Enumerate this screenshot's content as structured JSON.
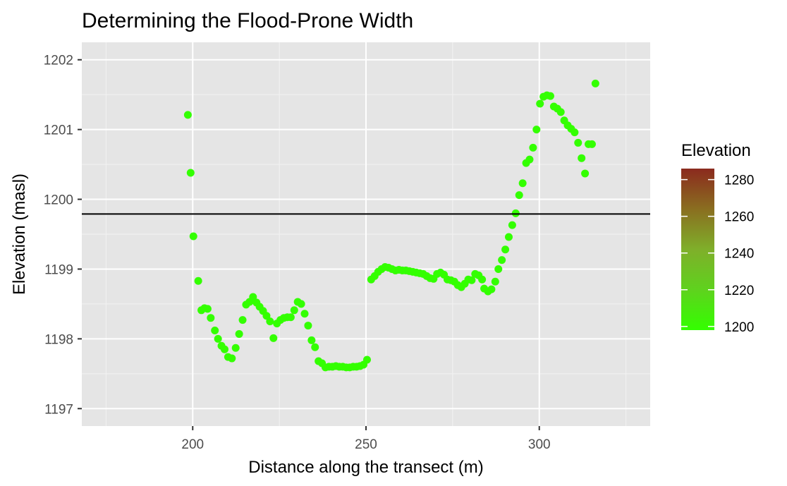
{
  "chart_data": {
    "type": "scatter",
    "title": "Determining the Flood-Prone Width",
    "xlabel": "Distance along the transect (m)",
    "ylabel": "Elevation (masl)",
    "xlim": [
      168,
      332
    ],
    "ylim": [
      1196.75,
      1202.25
    ],
    "x_ticks": [
      200,
      250,
      300
    ],
    "y_ticks": [
      1197,
      1198,
      1199,
      1200,
      1201,
      1202
    ],
    "grid": true,
    "panel_background": "#e5e5e5",
    "point_color": "#33ff00",
    "hline": {
      "y": 1199.79,
      "color": "#000000"
    },
    "legend": {
      "title": "Elevation",
      "position": "right",
      "ticks": [
        1200,
        1220,
        1240,
        1260,
        1280
      ],
      "range": [
        1198,
        1286
      ],
      "gradient": [
        "#33ff00",
        "#5fd21e",
        "#7faf2a",
        "#8a6e20",
        "#8b2a1e"
      ]
    },
    "points": [
      [
        198.6,
        1201.21
      ],
      [
        199.4,
        1200.38
      ],
      [
        200.2,
        1199.47
      ],
      [
        201.6,
        1198.83
      ],
      [
        202.5,
        1198.41
      ],
      [
        203.4,
        1198.44
      ],
      [
        204.3,
        1198.43
      ],
      [
        205.2,
        1198.3
      ],
      [
        206.4,
        1198.12
      ],
      [
        207.3,
        1198.0
      ],
      [
        208.3,
        1197.9
      ],
      [
        209.2,
        1197.85
      ],
      [
        210.2,
        1197.74
      ],
      [
        211.3,
        1197.72
      ],
      [
        212.4,
        1197.87
      ],
      [
        213.4,
        1198.07
      ],
      [
        214.4,
        1198.27
      ],
      [
        215.4,
        1198.49
      ],
      [
        216.4,
        1198.53
      ],
      [
        217.4,
        1198.6
      ],
      [
        218.4,
        1198.52
      ],
      [
        219.3,
        1198.46
      ],
      [
        220.3,
        1198.4
      ],
      [
        221.3,
        1198.33
      ],
      [
        222.3,
        1198.25
      ],
      [
        223.3,
        1198.01
      ],
      [
        224.3,
        1198.22
      ],
      [
        225.3,
        1198.27
      ],
      [
        226.3,
        1198.3
      ],
      [
        227.3,
        1198.31
      ],
      [
        228.3,
        1198.31
      ],
      [
        229.3,
        1198.41
      ],
      [
        230.3,
        1198.53
      ],
      [
        231.3,
        1198.5
      ],
      [
        232.3,
        1198.36
      ],
      [
        233.3,
        1198.19
      ],
      [
        234.3,
        1197.98
      ],
      [
        235.3,
        1197.88
      ],
      [
        236.3,
        1197.68
      ],
      [
        237.3,
        1197.65
      ],
      [
        238.3,
        1197.59
      ],
      [
        239.3,
        1197.6
      ],
      [
        240.3,
        1197.6
      ],
      [
        241.3,
        1197.61
      ],
      [
        242.3,
        1197.6
      ],
      [
        243.3,
        1197.6
      ],
      [
        244.3,
        1197.59
      ],
      [
        245.3,
        1197.59
      ],
      [
        246.3,
        1197.6
      ],
      [
        247.3,
        1197.6
      ],
      [
        248.3,
        1197.61
      ],
      [
        249.3,
        1197.63
      ],
      [
        250.3,
        1197.7
      ],
      [
        251.5,
        1198.85
      ],
      [
        252.5,
        1198.9
      ],
      [
        253.5,
        1198.96
      ],
      [
        254.5,
        1199.0
      ],
      [
        255.5,
        1199.03
      ],
      [
        256.5,
        1199.02
      ],
      [
        257.5,
        1199.0
      ],
      [
        258.5,
        1198.98
      ],
      [
        259.5,
        1198.99
      ],
      [
        260.5,
        1198.98
      ],
      [
        261.5,
        1198.98
      ],
      [
        262.5,
        1198.97
      ],
      [
        263.5,
        1198.96
      ],
      [
        264.5,
        1198.95
      ],
      [
        265.5,
        1198.94
      ],
      [
        266.5,
        1198.93
      ],
      [
        267.5,
        1198.9
      ],
      [
        268.5,
        1198.87
      ],
      [
        269.5,
        1198.86
      ],
      [
        270.5,
        1198.93
      ],
      [
        271.5,
        1198.95
      ],
      [
        272.5,
        1198.92
      ],
      [
        273.5,
        1198.85
      ],
      [
        274.5,
        1198.84
      ],
      [
        275.5,
        1198.82
      ],
      [
        276.5,
        1198.77
      ],
      [
        277.5,
        1198.74
      ],
      [
        278.5,
        1198.79
      ],
      [
        279.5,
        1198.85
      ],
      [
        280.5,
        1198.84
      ],
      [
        281.5,
        1198.93
      ],
      [
        282.5,
        1198.91
      ],
      [
        283.5,
        1198.85
      ],
      [
        284.1,
        1198.72
      ],
      [
        285.2,
        1198.68
      ],
      [
        286.2,
        1198.71
      ],
      [
        287.3,
        1198.82
      ],
      [
        288.2,
        1199.0
      ],
      [
        289.2,
        1199.13
      ],
      [
        290.2,
        1199.28
      ],
      [
        291.2,
        1199.46
      ],
      [
        292.2,
        1199.63
      ],
      [
        293.2,
        1199.8
      ],
      [
        294.2,
        1200.06
      ],
      [
        295.2,
        1200.23
      ],
      [
        296.2,
        1200.52
      ],
      [
        297.2,
        1200.57
      ],
      [
        298.2,
        1200.74
      ],
      [
        299.2,
        1201.0
      ],
      [
        300.2,
        1201.37
      ],
      [
        301.2,
        1201.47
      ],
      [
        302.2,
        1201.49
      ],
      [
        303.2,
        1201.48
      ],
      [
        304.2,
        1201.33
      ],
      [
        305.2,
        1201.3
      ],
      [
        306.2,
        1201.25
      ],
      [
        307.2,
        1201.13
      ],
      [
        308.2,
        1201.06
      ],
      [
        309.2,
        1201.01
      ],
      [
        310.2,
        1200.96
      ],
      [
        311.2,
        1200.81
      ],
      [
        312.2,
        1200.59
      ],
      [
        313.2,
        1200.37
      ],
      [
        314.2,
        1200.79
      ],
      [
        315.2,
        1200.79
      ],
      [
        316.2,
        1201.66
      ]
    ]
  }
}
